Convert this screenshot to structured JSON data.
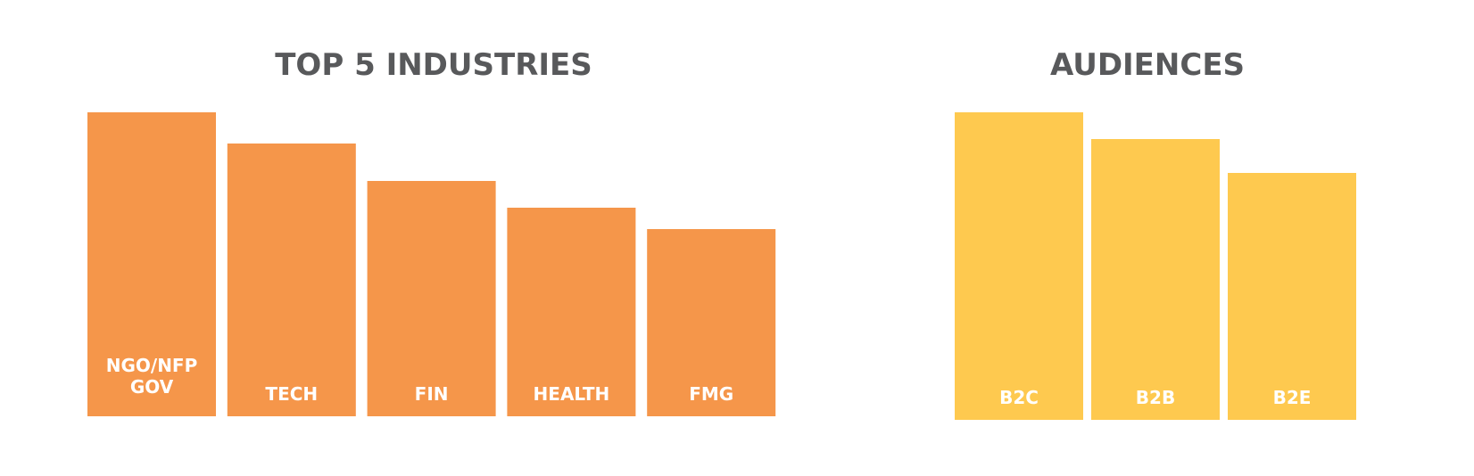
{
  "chart_data": [
    {
      "type": "bar",
      "title": "TOP 5 INDUSTRIES",
      "categories": [
        [
          "NGO/NFP",
          "GOV"
        ],
        "TECH",
        "FIN",
        "HEALTH",
        "FMG"
      ],
      "values": [
        341,
        306,
        264,
        234,
        210
      ],
      "color": "#f5964a"
    },
    {
      "type": "bar",
      "title": "AUDIENCES",
      "categories": [
        "B2C",
        "B2B",
        "B2E"
      ],
      "values": [
        345,
        315,
        277
      ],
      "color": "#fec94f"
    }
  ]
}
